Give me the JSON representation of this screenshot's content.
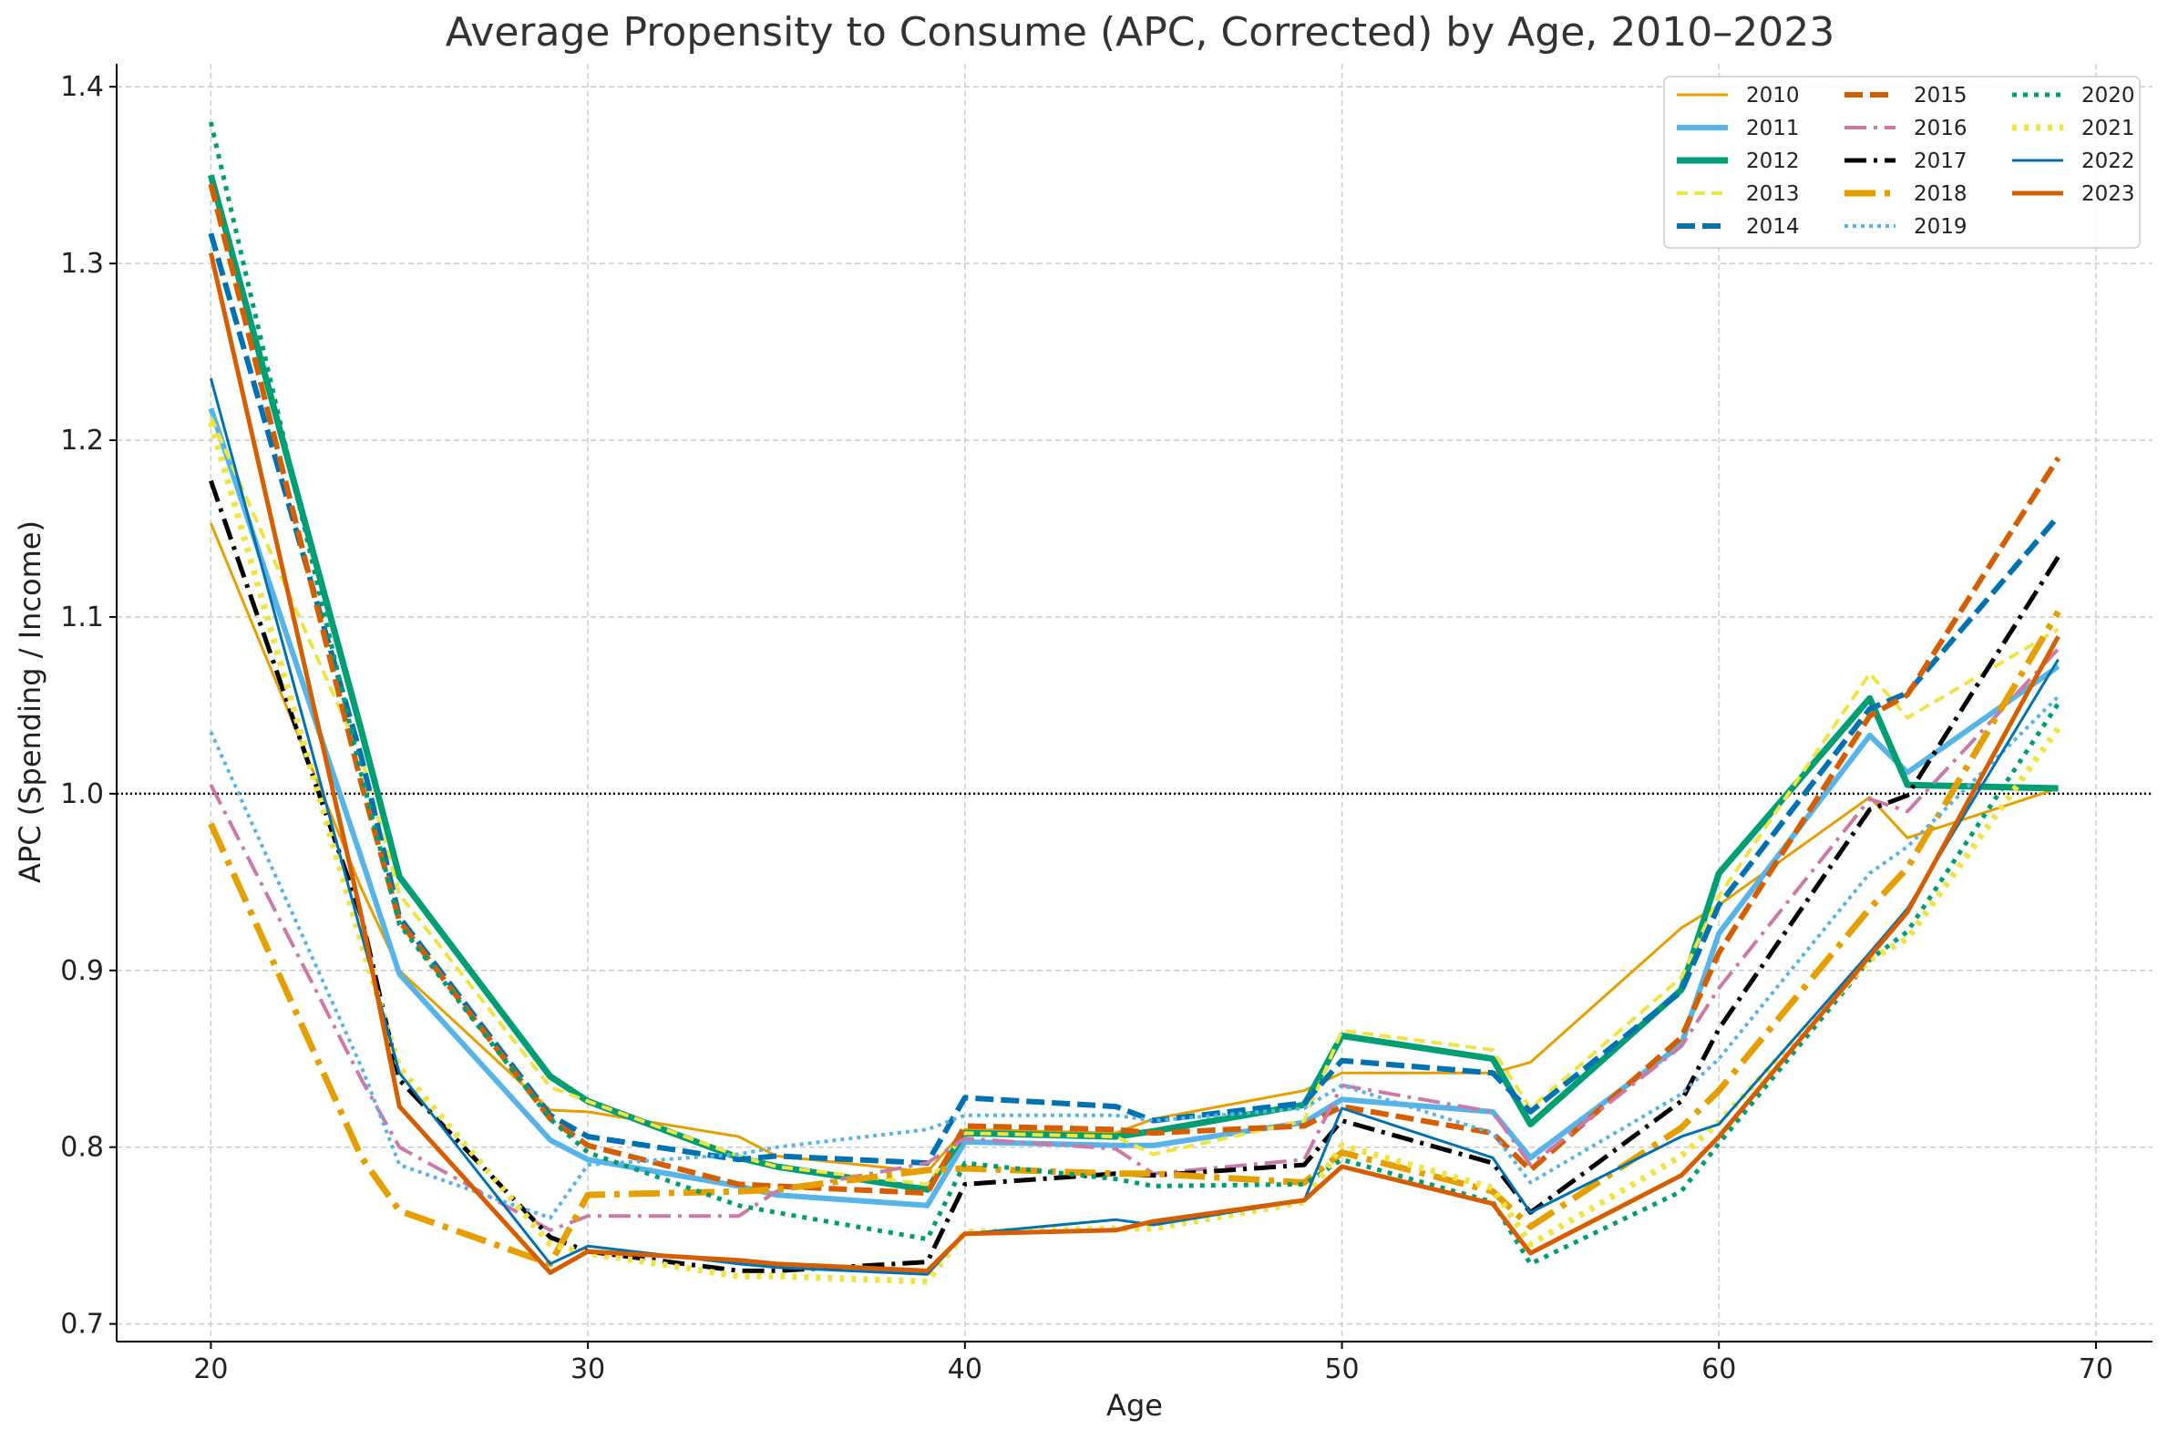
{
  "chart_data": {
    "type": "line",
    "title": "Average Propensity to Consume (APC, Corrected) by Age, 2010–2023",
    "xlabel": "Age",
    "ylabel": "APC (Spending / Income)",
    "xlim": [
      17.5,
      71.5
    ],
    "ylim": [
      0.69,
      1.413
    ],
    "xticks": [
      20,
      30,
      40,
      50,
      60,
      70
    ],
    "yticks": [
      0.7,
      0.8,
      0.9,
      1.0,
      1.1,
      1.2,
      1.3,
      1.4
    ],
    "xtick_labels": [
      "20",
      "30",
      "40",
      "50",
      "60",
      "70"
    ],
    "ytick_labels": [
      "0.7",
      "0.8",
      "0.9",
      "1.0",
      "1.1",
      "1.2",
      "1.3",
      "1.4"
    ],
    "grid": true,
    "reference_line": {
      "y": 1.0,
      "style": "dotted",
      "color": "#000000"
    },
    "legend": {
      "position": "top-right",
      "columns": 3
    },
    "x": [
      20,
      24,
      25,
      29,
      30,
      34,
      35,
      39,
      40,
      44,
      45,
      49,
      50,
      54,
      55,
      59,
      60,
      64,
      65,
      69
    ],
    "series": [
      {
        "name": "2010",
        "color": "#E69F00",
        "dash": "solid",
        "width": 3,
        "values": [
          1.153,
          0.946,
          0.9,
          0.821,
          0.82,
          0.806,
          0.795,
          0.786,
          0.81,
          0.808,
          0.816,
          0.832,
          0.842,
          0.842,
          0.848,
          0.924,
          0.937,
          0.998,
          0.975,
          1.003
        ]
      },
      {
        "name": "2011",
        "color": "#56B4E9",
        "dash": "solid",
        "width": 6,
        "values": [
          1.218,
          0.963,
          0.898,
          0.804,
          0.793,
          0.778,
          0.773,
          0.767,
          0.803,
          0.801,
          0.801,
          0.814,
          0.827,
          0.82,
          0.794,
          0.858,
          0.921,
          1.033,
          1.012,
          1.072
        ]
      },
      {
        "name": "2012",
        "color": "#009E73",
        "dash": "solid",
        "width": 7,
        "values": [
          1.35,
          1.035,
          0.953,
          0.84,
          0.826,
          0.794,
          0.789,
          0.776,
          0.808,
          0.806,
          0.809,
          0.824,
          0.863,
          0.85,
          0.813,
          0.889,
          0.955,
          1.054,
          1.005,
          1.003
        ]
      },
      {
        "name": "2013",
        "color": "#F0E442",
        "dash": "12,7",
        "width": 4,
        "values": [
          1.213,
          1.02,
          0.943,
          0.834,
          0.826,
          0.795,
          0.789,
          0.779,
          0.808,
          0.806,
          0.796,
          0.815,
          0.866,
          0.855,
          0.822,
          0.896,
          0.942,
          1.068,
          1.043,
          1.093
        ]
      },
      {
        "name": "2014",
        "color": "#0072B2",
        "dash": "20,8",
        "width": 6,
        "values": [
          1.317,
          1.02,
          0.93,
          0.818,
          0.806,
          0.793,
          0.795,
          0.791,
          0.828,
          0.823,
          0.815,
          0.825,
          0.849,
          0.842,
          0.82,
          0.888,
          0.937,
          1.048,
          1.057,
          1.157
        ]
      },
      {
        "name": "2015",
        "color": "#D55E00",
        "dash": "20,8",
        "width": 6,
        "values": [
          1.345,
          1.005,
          0.928,
          0.816,
          0.801,
          0.779,
          0.778,
          0.774,
          0.812,
          0.81,
          0.808,
          0.812,
          0.823,
          0.808,
          0.787,
          0.862,
          0.91,
          1.044,
          1.056,
          1.19
        ]
      },
      {
        "name": "2016",
        "color": "#CC79A7",
        "dash": "24,8,4,8",
        "width": 4,
        "values": [
          1.005,
          0.838,
          0.8,
          0.753,
          0.761,
          0.761,
          0.775,
          0.791,
          0.805,
          0.799,
          0.785,
          0.793,
          0.835,
          0.82,
          0.79,
          0.857,
          0.89,
          0.997,
          0.99,
          1.082
        ]
      },
      {
        "name": "2017",
        "color": "#000000",
        "dash": "24,8,4,8",
        "width": 5,
        "values": [
          1.177,
          0.93,
          0.838,
          0.749,
          0.741,
          0.73,
          0.73,
          0.735,
          0.779,
          0.785,
          0.784,
          0.79,
          0.815,
          0.791,
          0.763,
          0.826,
          0.867,
          0.991,
          0.999,
          1.134
        ]
      },
      {
        "name": "2018",
        "color": "#E69F00",
        "dash": "34,10,6,10",
        "width": 7,
        "values": [
          0.983,
          0.794,
          0.764,
          0.734,
          0.773,
          0.775,
          0.776,
          0.787,
          0.788,
          0.785,
          0.785,
          0.78,
          0.797,
          0.775,
          0.755,
          0.811,
          0.832,
          0.935,
          0.958,
          1.103
        ]
      },
      {
        "name": "2019",
        "color": "#56B4E9",
        "dash": "4,5",
        "width": 4,
        "values": [
          1.035,
          0.845,
          0.79,
          0.76,
          0.79,
          0.796,
          0.8,
          0.81,
          0.818,
          0.818,
          0.815,
          0.822,
          0.835,
          0.808,
          0.78,
          0.83,
          0.85,
          0.955,
          0.97,
          1.055
        ]
      },
      {
        "name": "2020",
        "color": "#009E73",
        "dash": "5,7",
        "width": 5,
        "values": [
          1.38,
          1.01,
          0.926,
          0.816,
          0.797,
          0.767,
          0.763,
          0.748,
          0.791,
          0.782,
          0.778,
          0.779,
          0.793,
          0.769,
          0.734,
          0.775,
          0.802,
          0.906,
          0.922,
          1.051
        ]
      },
      {
        "name": "2021",
        "color": "#F0E442",
        "dash": "5,8",
        "width": 7,
        "values": [
          1.21,
          0.915,
          0.845,
          0.745,
          0.74,
          0.727,
          0.727,
          0.724,
          0.752,
          0.754,
          0.754,
          0.769,
          0.801,
          0.777,
          0.745,
          0.795,
          0.814,
          0.906,
          0.918,
          1.037
        ]
      },
      {
        "name": "2022",
        "color": "#0072B2",
        "dash": "solid",
        "width": 3,
        "values": [
          1.235,
          0.92,
          0.842,
          0.734,
          0.744,
          0.734,
          0.732,
          0.728,
          0.751,
          0.759,
          0.756,
          0.77,
          0.822,
          0.794,
          0.763,
          0.806,
          0.813,
          0.91,
          0.935,
          1.076
        ]
      },
      {
        "name": "2023",
        "color": "#D55E00",
        "dash": "solid",
        "width": 5,
        "values": [
          1.306,
          0.93,
          0.823,
          0.729,
          0.741,
          0.736,
          0.734,
          0.73,
          0.751,
          0.753,
          0.758,
          0.77,
          0.789,
          0.768,
          0.74,
          0.784,
          0.806,
          0.908,
          0.933,
          1.089
        ]
      }
    ]
  }
}
